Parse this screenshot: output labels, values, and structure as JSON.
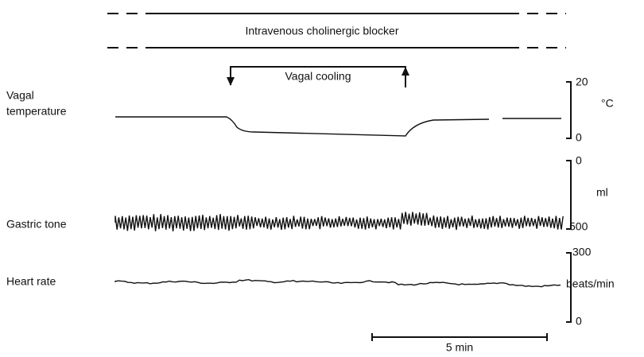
{
  "blocker_label": "Intravenous cholinergic blocker",
  "cooling_label": "Vagal cooling",
  "traces": [
    {
      "name_lines": [
        "Vagal",
        "temperature"
      ],
      "scale_top": "20",
      "scale_bottom": "0",
      "unit": "°C"
    },
    {
      "name_lines": [
        "Gastric tone"
      ],
      "scale_top": "0",
      "scale_bottom": "500",
      "unit": "ml"
    },
    {
      "name_lines": [
        "Heart rate"
      ],
      "scale_top": "300",
      "scale_bottom": "0",
      "unit": "beats/min"
    }
  ],
  "time_bar_label": "5 min"
}
